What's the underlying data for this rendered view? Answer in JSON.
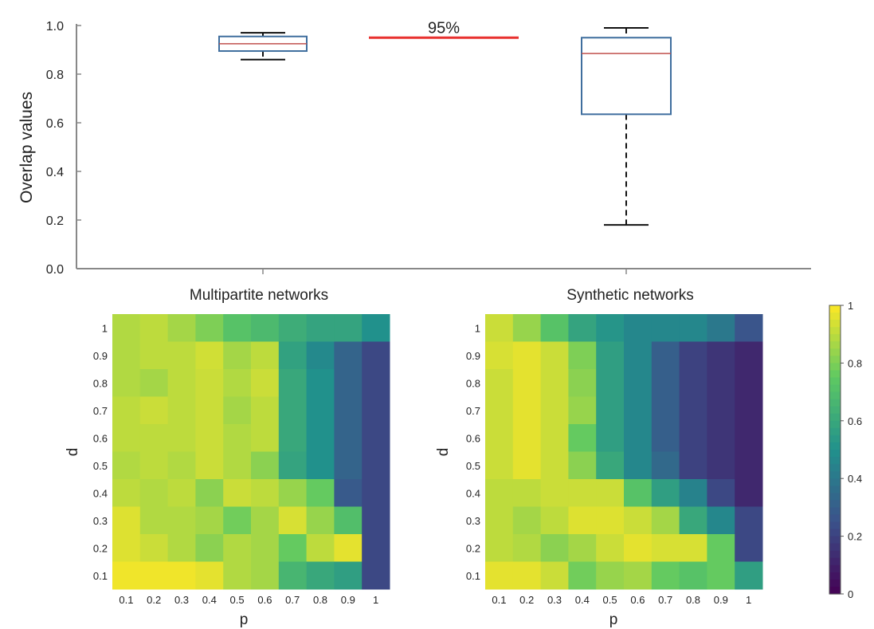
{
  "colors": {
    "box_edge": "#3f6e9e",
    "median": "#c0504d",
    "threshold": "#e8312f",
    "axis": "#888888",
    "colormap": [
      "#440154",
      "#3b528b",
      "#21918c",
      "#5ec962",
      "#fde725"
    ]
  },
  "chart_data": [
    {
      "type": "box",
      "ylabel": "Overlap values",
      "ylim": [
        0,
        1
      ],
      "yticks": [
        "0.0",
        "0.2",
        "0.4",
        "0.6",
        "0.8",
        "1.0"
      ],
      "grid": false,
      "boxes": [
        {
          "name": "Multipartite networks",
          "min": 0.86,
          "q1": 0.895,
          "median": 0.925,
          "q3": 0.955,
          "max": 0.97
        },
        {
          "name": "Synthetic networks",
          "min": 0.18,
          "q1": 0.635,
          "median": 0.885,
          "q3": 0.95,
          "max": 0.99
        }
      ],
      "reference_line": {
        "value": 0.95,
        "label": "95%"
      }
    },
    {
      "type": "heatmap",
      "title": "Multipartite networks",
      "xlabel": "p",
      "ylabel": "d",
      "x": [
        "0.1",
        "0.2",
        "0.3",
        "0.4",
        "0.5",
        "0.6",
        "0.7",
        "0.8",
        "0.9",
        "1"
      ],
      "y": [
        "1",
        "0.9",
        "0.8",
        "0.7",
        "0.6",
        "0.5",
        "0.4",
        "0.3",
        "0.2",
        "0.1"
      ],
      "values": [
        [
          0.88,
          0.9,
          0.86,
          0.8,
          0.72,
          0.68,
          0.62,
          0.58,
          0.58,
          0.5
        ],
        [
          0.88,
          0.9,
          0.9,
          0.93,
          0.86,
          0.9,
          0.57,
          0.47,
          0.32,
          0.22
        ],
        [
          0.88,
          0.86,
          0.9,
          0.92,
          0.88,
          0.92,
          0.6,
          0.5,
          0.32,
          0.22
        ],
        [
          0.9,
          0.92,
          0.9,
          0.92,
          0.86,
          0.9,
          0.6,
          0.5,
          0.32,
          0.22
        ],
        [
          0.9,
          0.9,
          0.9,
          0.92,
          0.88,
          0.9,
          0.6,
          0.5,
          0.32,
          0.22
        ],
        [
          0.88,
          0.9,
          0.88,
          0.92,
          0.88,
          0.82,
          0.58,
          0.5,
          0.32,
          0.22
        ],
        [
          0.9,
          0.88,
          0.9,
          0.82,
          0.92,
          0.9,
          0.84,
          0.76,
          0.28,
          0.22
        ],
        [
          0.95,
          0.88,
          0.88,
          0.86,
          0.78,
          0.86,
          0.94,
          0.84,
          0.7,
          0.22
        ],
        [
          0.95,
          0.92,
          0.88,
          0.82,
          0.88,
          0.86,
          0.76,
          0.9,
          0.96,
          0.22
        ],
        [
          0.98,
          0.98,
          0.98,
          0.96,
          0.88,
          0.86,
          0.66,
          0.6,
          0.56,
          0.22
        ]
      ]
    },
    {
      "type": "heatmap",
      "title": "Synthetic networks",
      "xlabel": "p",
      "ylabel": "d",
      "x": [
        "0.1",
        "0.2",
        "0.3",
        "0.4",
        "0.5",
        "0.6",
        "0.7",
        "0.8",
        "0.9",
        "1"
      ],
      "y": [
        "1",
        "0.9",
        "0.8",
        "0.7",
        "0.6",
        "0.5",
        "0.4",
        "0.3",
        "0.2",
        "0.1"
      ],
      "values": [
        [
          0.92,
          0.84,
          0.72,
          0.58,
          0.52,
          0.46,
          0.46,
          0.46,
          0.4,
          0.26
        ],
        [
          0.94,
          0.96,
          0.92,
          0.8,
          0.56,
          0.46,
          0.3,
          0.2,
          0.16,
          0.12
        ],
        [
          0.92,
          0.96,
          0.92,
          0.82,
          0.56,
          0.46,
          0.3,
          0.2,
          0.16,
          0.12
        ],
        [
          0.92,
          0.96,
          0.92,
          0.84,
          0.56,
          0.46,
          0.3,
          0.2,
          0.16,
          0.12
        ],
        [
          0.92,
          0.96,
          0.92,
          0.76,
          0.56,
          0.46,
          0.3,
          0.2,
          0.16,
          0.12
        ],
        [
          0.92,
          0.96,
          0.92,
          0.82,
          0.6,
          0.46,
          0.34,
          0.2,
          0.16,
          0.12
        ],
        [
          0.9,
          0.9,
          0.92,
          0.92,
          0.92,
          0.72,
          0.56,
          0.44,
          0.22,
          0.12
        ],
        [
          0.9,
          0.86,
          0.9,
          0.95,
          0.95,
          0.92,
          0.86,
          0.6,
          0.46,
          0.22
        ],
        [
          0.9,
          0.88,
          0.82,
          0.86,
          0.92,
          0.96,
          0.94,
          0.94,
          0.76,
          0.22
        ],
        [
          0.96,
          0.96,
          0.92,
          0.78,
          0.84,
          0.86,
          0.76,
          0.72,
          0.76,
          0.56
        ]
      ]
    }
  ],
  "colorbar": {
    "range": [
      0,
      1
    ],
    "ticks": [
      "0",
      "0.2",
      "0.4",
      "0.6",
      "0.8",
      "1"
    ]
  }
}
